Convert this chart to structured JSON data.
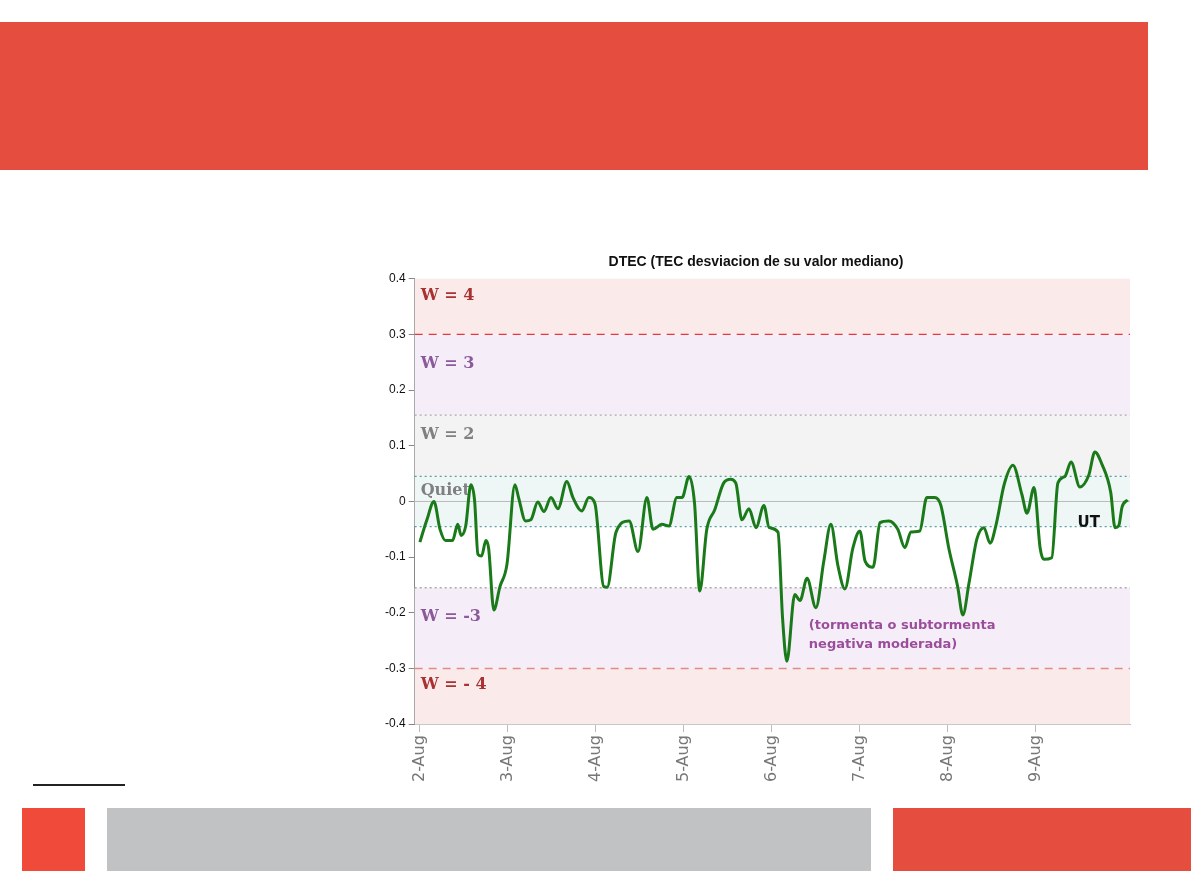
{
  "chart_data": {
    "type": "line",
    "title": "DTEC (TEC desviacion de su valor mediano)",
    "xlabel": "UT",
    "xlim": [
      "--08-01T22:35",
      "--08-10T01:40"
    ],
    "xticks": [
      {
        "value": "--08-02",
        "label": "2-Aug"
      },
      {
        "value": "--08-03",
        "label": "3-Aug"
      },
      {
        "value": "--08-04",
        "label": "4-Aug"
      },
      {
        "value": "--08-05",
        "label": "5-Aug"
      },
      {
        "value": "--08-06",
        "label": "6-Aug"
      },
      {
        "value": "--08-07",
        "label": "7-Aug"
      },
      {
        "value": "--08-08",
        "label": "8-Aug"
      },
      {
        "value": "--08-09",
        "label": "9-Aug"
      }
    ],
    "ylim": [
      -0.4,
      0.4
    ],
    "yticks": [
      -0.4,
      -0.3,
      -0.2,
      -0.1,
      0,
      0.1,
      0.2,
      0.3,
      0.4
    ],
    "grid": false,
    "legend": false,
    "marker": "none",
    "line_style": "solid",
    "series": [
      {
        "color": "#1a7a1a",
        "x": [
          "--08-02T00:00",
          "--08-02T01:55",
          "--08-02T03:50",
          "--08-02T05:30",
          "--08-02T07:00",
          "--08-02T08:55",
          "--08-02T10:20",
          "--08-02T11:15",
          "--08-02T12:30",
          "--08-02T13:55",
          "--08-02T14:55",
          "--08-02T15:50",
          "--08-02T16:50",
          "--08-02T18:00",
          "--08-02T18:45",
          "--08-02T20:10",
          "--08-02T21:50",
          "--08-02T23:45",
          "--08-03T01:55",
          "--08-03T02:55",
          "--08-03T04:50",
          "--08-03T06:15",
          "--08-03T08:10",
          "--08-03T09:50",
          "--08-03T11:45",
          "--08-03T13:40",
          "--08-03T16:05",
          "--08-03T17:45",
          "--08-03T20:10",
          "--08-03T22:05",
          "--08-03T23:45",
          "--08-04T02:10",
          "--08-04T03:05",
          "--08-04T05:30",
          "--08-04T09:05",
          "--08-04T11:30",
          "--08-04T13:55",
          "--08-04T15:35",
          "--08-04T18:00",
          "--08-04T19:55",
          "--08-04T22:05",
          "--08-04T23:30",
          "--08-05T01:25",
          "--08-05T02:55",
          "--08-05T04:20",
          "--08-05T06:15",
          "--08-05T08:25",
          "--08-05T10:50",
          "--08-05T12:45",
          "--08-05T14:10",
          "--08-05T15:50",
          "--08-05T17:45",
          "--08-05T19:40",
          "--08-05T21:50",
          "--08-05T23:15",
          "--08-06T01:40",
          "--08-06T02:55",
          "--08-06T04:05",
          "--08-06T06:15",
          "--08-06T07:40",
          "--08-06T09:35",
          "--08-06T12:00",
          "--08-06T14:10",
          "--08-06T16:05",
          "--08-06T18:00",
          "--08-06T19:55",
          "--08-06T22:05",
          "--08-07T00:00",
          "--08-07T01:25",
          "--08-07T03:35",
          "--08-07T05:30",
          "--08-07T07:55",
          "--08-07T10:20",
          "--08-07T12:15",
          "--08-07T13:55",
          "--08-07T16:20",
          "--08-07T18:15",
          "--08-07T20:25",
          "--08-07T22:05",
          "--08-08T00:15",
          "--08-08T02:40",
          "--08-08T04:05",
          "--08-08T05:45",
          "--08-08T07:55",
          "--08-08T09:50",
          "--08-08T11:30",
          "--08-08T13:10",
          "--08-08T15:20",
          "--08-08T17:45",
          "--08-08T20:10",
          "--08-08T21:35",
          "--08-08T23:30",
          "--08-09T01:10",
          "--08-09T02:10",
          "--08-09T04:20",
          "--08-09T06:00",
          "--08-09T07:55",
          "--08-09T09:35",
          "--08-09T12:00",
          "--08-09T14:25",
          "--08-09T16:05",
          "--08-09T18:00",
          "--08-09T20:25",
          "--08-09T21:35",
          "--08-09T22:35",
          "--08-09T23:30",
          "--08-10T01:00"
        ],
        "values": [
          -0.073,
          -0.033,
          0.0,
          -0.05,
          -0.07,
          -0.07,
          -0.041,
          -0.061,
          -0.044,
          0.03,
          0.002,
          -0.095,
          -0.098,
          -0.07,
          -0.084,
          -0.195,
          -0.153,
          -0.113,
          0.03,
          0.007,
          -0.035,
          -0.033,
          -0.001,
          -0.018,
          0.007,
          -0.013,
          0.036,
          0.007,
          -0.017,
          0.007,
          -0.004,
          -0.153,
          -0.154,
          -0.055,
          -0.035,
          -0.09,
          0.007,
          -0.05,
          -0.041,
          -0.044,
          0.007,
          0.007,
          0.045,
          -0.004,
          -0.161,
          -0.05,
          -0.015,
          0.033,
          0.04,
          0.033,
          -0.033,
          -0.013,
          -0.047,
          -0.007,
          -0.047,
          -0.055,
          -0.21,
          -0.287,
          -0.167,
          -0.178,
          -0.138,
          -0.191,
          -0.107,
          -0.041,
          -0.115,
          -0.157,
          -0.084,
          -0.053,
          -0.107,
          -0.118,
          -0.038,
          -0.035,
          -0.05,
          -0.083,
          -0.055,
          -0.053,
          0.007,
          0.007,
          -0.007,
          -0.084,
          -0.153,
          -0.204,
          -0.147,
          -0.067,
          -0.047,
          -0.075,
          -0.041,
          0.03,
          0.065,
          0.013,
          -0.021,
          0.025,
          -0.084,
          -0.104,
          -0.101,
          0.033,
          0.045,
          0.071,
          0.026,
          0.047,
          0.089,
          0.067,
          0.016,
          -0.047,
          -0.044,
          -0.01,
          0.003
        ]
      }
    ],
    "ref_lines": [
      {
        "axis": "y",
        "value": 0.3,
        "color": "#e8383d",
        "line_style": "dashed"
      },
      {
        "axis": "y",
        "value": 0.155,
        "color": "#aaaaaa",
        "line_style": "dotted"
      },
      {
        "axis": "y",
        "value": 0.045,
        "color": "#5a9ea0",
        "line_style": "dotted"
      },
      {
        "axis": "y",
        "value": -0.045,
        "color": "#5a9ea0",
        "line_style": "dotted"
      },
      {
        "axis": "y",
        "value": -0.155,
        "color": "#aaaaaa",
        "line_style": "dotted"
      },
      {
        "axis": "y",
        "value": -0.3,
        "color": "#e08a8a",
        "line_style": "dashed"
      }
    ],
    "bands": [
      {
        "axis": "y",
        "from": 0.3,
        "to": 0.4,
        "label": "W = 4",
        "color": "#fbeaea"
      },
      {
        "axis": "y",
        "from": 0.155,
        "to": 0.3,
        "label": "W = 3",
        "color": "#f5eef8"
      },
      {
        "axis": "y",
        "from": 0.045,
        "to": 0.155,
        "label": "W = 2",
        "color": "#f3f3f3"
      },
      {
        "axis": "y",
        "from": -0.045,
        "to": 0.045,
        "label": "Quiet",
        "color": "#eef6f6"
      },
      {
        "axis": "y",
        "from": -0.3,
        "to": -0.155,
        "label": "W = -3",
        "color": "#f5eef8"
      },
      {
        "axis": "y",
        "from": -0.4,
        "to": -0.3,
        "label": "W = - 4",
        "color": "#fbeaea"
      }
    ],
    "annotations": [
      {
        "text": "(tormenta o subtormenta\nnegativa moderada)",
        "x": "--08-06T04:05",
        "y": -0.287
      }
    ]
  }
}
